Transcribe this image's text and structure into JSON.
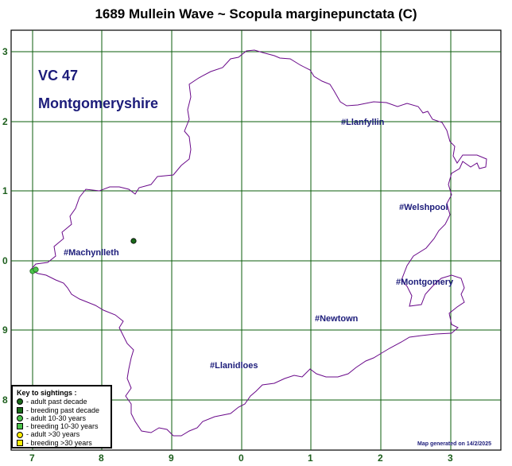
{
  "title": "1689 Mullein Wave ~ Scopula marginepunctata (C)",
  "area": {
    "vc": "VC 47",
    "name": "Montgomeryshire"
  },
  "grid": {
    "x_ticks": [
      "7",
      "8",
      "9",
      "0",
      "1",
      "2",
      "3"
    ],
    "y_ticks": [
      "3",
      "2",
      "1",
      "0",
      "9",
      "8"
    ]
  },
  "towns": [
    {
      "name": "#Llanfyllin"
    },
    {
      "name": "#Welshpool"
    },
    {
      "name": "#Machynlleth"
    },
    {
      "name": "#Montgomery"
    },
    {
      "name": "#Newtown"
    },
    {
      "name": "#Llanidloes"
    }
  ],
  "key": {
    "title": "Key to sightings :",
    "items": [
      {
        "label": "- adult past decade",
        "shape": "circle",
        "color": "#1a6a1a"
      },
      {
        "label": "- breeding past decade",
        "shape": "square",
        "color": "#1a6a1a"
      },
      {
        "label": "- adult 10-30 years",
        "shape": "circle",
        "color": "#4cc44c"
      },
      {
        "label": "- breeding 10-30 years",
        "shape": "square",
        "color": "#4cc44c"
      },
      {
        "label": "- adult >30 years",
        "shape": "circle",
        "color": "#ffee00"
      },
      {
        "label": "- breeding >30 years",
        "shape": "square",
        "color": "#ffee00"
      }
    ]
  },
  "footer": "Map generated on 14/2/2025",
  "colors": {
    "grid": "#0b5e0b",
    "boundary": "#6a0a8a",
    "frame": "#000000",
    "label": "#1c1c7a"
  }
}
